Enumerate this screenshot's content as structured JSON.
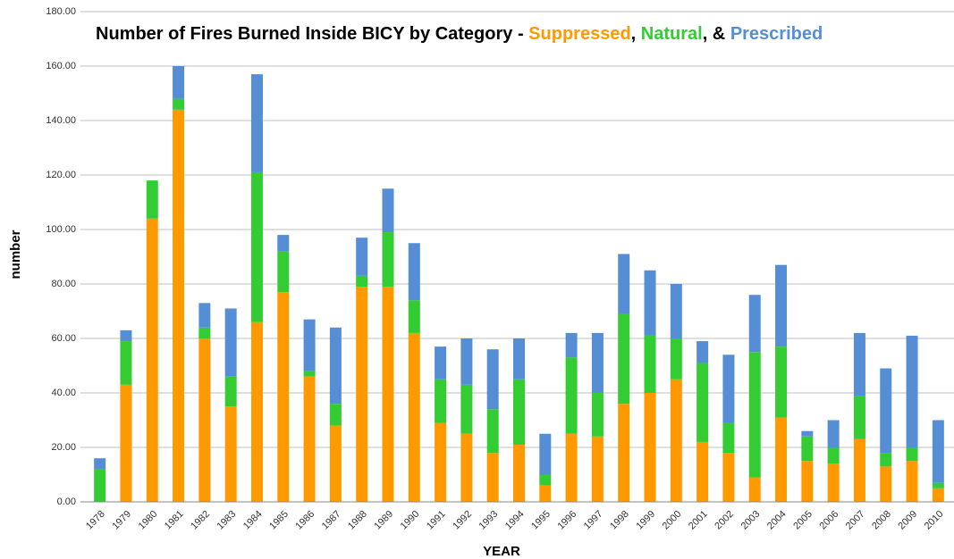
{
  "chart_data": {
    "type": "stacked_bar",
    "title_parts": [
      "Number of Fires Burned Inside BICY by Category - ",
      ", ",
      ", & "
    ],
    "x_label": "YEAR",
    "y_label": "number",
    "categories": [
      "1978",
      "1979",
      "1980",
      "1981",
      "1982",
      "1983",
      "1984",
      "1985",
      "1986",
      "1987",
      "1988",
      "1989",
      "1990",
      "1991",
      "1992",
      "1993",
      "1994",
      "1995",
      "1996",
      "1997",
      "1998",
      "1999",
      "2000",
      "2001",
      "2002",
      "2003",
      "2004",
      "2005",
      "2006",
      "2007",
      "2008",
      "2009",
      "2010"
    ],
    "series": [
      {
        "name": "Suppressed",
        "color": "#ff9900",
        "values": [
          0,
          43,
          104,
          144,
          60,
          35,
          66,
          77,
          46,
          28,
          79,
          79,
          62,
          29,
          25,
          18,
          21,
          6,
          25,
          24,
          36,
          40,
          45,
          22,
          18,
          9,
          31,
          15,
          14,
          23,
          13,
          15,
          5
        ]
      },
      {
        "name": "Natural",
        "color": "#33cc33",
        "values": [
          12,
          16,
          14,
          4,
          4,
          11,
          55,
          15,
          2,
          8,
          4,
          20,
          12,
          16,
          18,
          16,
          24,
          4,
          28,
          16,
          33,
          21,
          15,
          29,
          11,
          46,
          26,
          9,
          6,
          16,
          5,
          5,
          2
        ]
      },
      {
        "name": "Prescribed",
        "color": "#558ed5",
        "values": [
          4,
          4,
          0,
          12,
          9,
          25,
          36,
          6,
          19,
          28,
          14,
          16,
          21,
          12,
          17,
          22,
          15,
          15,
          9,
          22,
          22,
          24,
          20,
          8,
          25,
          21,
          30,
          2,
          10,
          23,
          31,
          41,
          23
        ]
      }
    ],
    "ylim": [
      0,
      180
    ],
    "yticks": [
      {
        "value": 0,
        "label": "0.00"
      },
      {
        "value": 20,
        "label": "20.00"
      },
      {
        "value": 40,
        "label": "40.00"
      },
      {
        "value": 60,
        "label": "60.00"
      },
      {
        "value": 80,
        "label": "80.00"
      },
      {
        "value": 100,
        "label": "100.00"
      },
      {
        "value": 120,
        "label": "120.00"
      },
      {
        "value": 140,
        "label": "140.00"
      },
      {
        "value": 160,
        "label": "160.00"
      },
      {
        "value": 180,
        "label": "180.00"
      }
    ],
    "grid": true
  }
}
